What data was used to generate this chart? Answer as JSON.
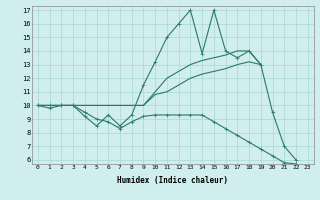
{
  "x": [
    0,
    1,
    2,
    3,
    4,
    5,
    6,
    7,
    8,
    9,
    10,
    11,
    12,
    13,
    14,
    15,
    16,
    17,
    18,
    19,
    20,
    21,
    22,
    23
  ],
  "y_main": [
    10,
    9.8,
    10,
    10,
    9.2,
    8.5,
    9.3,
    8.5,
    9.3,
    11.5,
    13.2,
    15,
    16,
    17,
    13.8,
    17,
    14,
    13.5,
    14,
    13,
    9.5,
    7,
    6,
    null
  ],
  "y_upper1": [
    10,
    10,
    10,
    10,
    10,
    10,
    10,
    10,
    10,
    10,
    11,
    12,
    12.5,
    13,
    13.3,
    13.5,
    13.7,
    14,
    14,
    13,
    null,
    null,
    null,
    null
  ],
  "y_upper2": [
    10,
    10,
    10,
    10,
    10,
    10,
    10,
    10,
    10,
    10,
    10.8,
    11,
    11.5,
    12,
    12.3,
    12.5,
    12.7,
    13,
    13.2,
    13,
    null,
    null,
    null,
    null
  ],
  "y_lower": [
    10,
    10,
    10,
    10,
    9.5,
    9,
    8.8,
    8.3,
    8.8,
    9.2,
    9.3,
    9.3,
    9.3,
    9.3,
    9.3,
    8.8,
    8.3,
    7.8,
    7.3,
    6.8,
    6.3,
    5.8,
    5.7,
    null
  ],
  "color": "#2a7a62",
  "bg_color": "#d0eeee",
  "grid_color": "#a8d8d8",
  "xlabel": "Humidex (Indice chaleur)",
  "ylim": [
    6,
    17
  ],
  "xlim": [
    -0.5,
    23.5
  ],
  "yticks": [
    6,
    7,
    8,
    9,
    10,
    11,
    12,
    13,
    14,
    15,
    16,
    17
  ],
  "xticks": [
    0,
    1,
    2,
    3,
    4,
    5,
    6,
    7,
    8,
    9,
    10,
    11,
    12,
    13,
    14,
    15,
    16,
    17,
    18,
    19,
    20,
    21,
    22,
    23
  ]
}
